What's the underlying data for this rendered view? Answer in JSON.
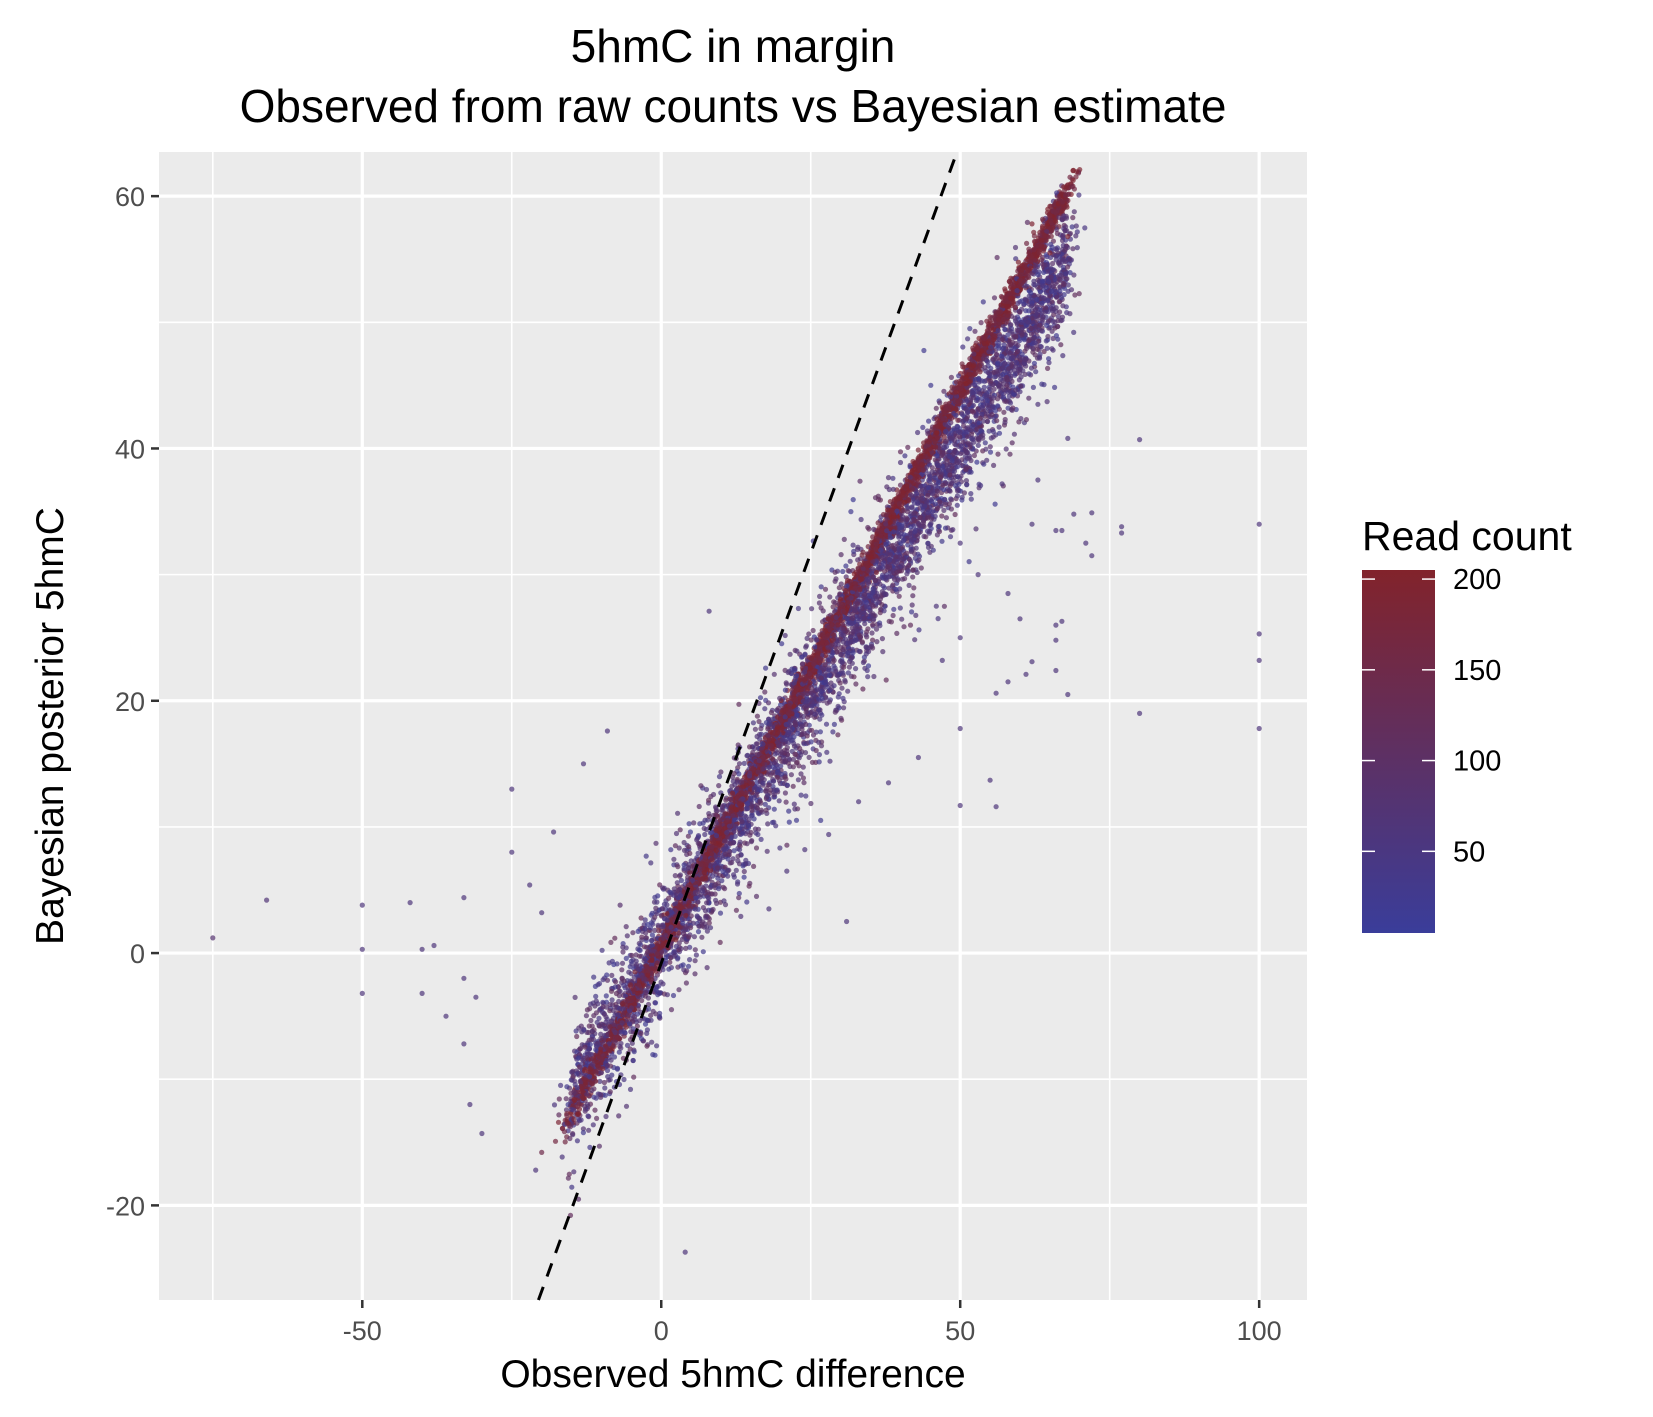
{
  "chart_data": {
    "type": "scatter",
    "title": "5hmC in margin",
    "subtitle": "Observed from raw counts vs Bayesian estimate",
    "xlabel": "Observed 5hmC difference",
    "ylabel": "Bayesian posterior 5hmC",
    "xlim": [
      -84,
      108
    ],
    "ylim": [
      -27.5,
      63.5
    ],
    "x_ticks": [
      -50,
      0,
      50,
      100
    ],
    "x_tick_labels": [
      "-50",
      "0",
      "50",
      "100"
    ],
    "y_ticks": [
      -20,
      0,
      20,
      40,
      60
    ],
    "y_tick_labels": [
      "-20",
      "0",
      "20",
      "40",
      "60"
    ],
    "grid": true,
    "reference_line": {
      "style": "dashed",
      "color": "#000000",
      "slope": 1.3,
      "intercept": -0.8
    },
    "color_scale": {
      "title": "Read count",
      "low_color": "#3a3d9a",
      "high_color": "#82232b",
      "breaks": [
        50,
        100,
        150,
        200
      ],
      "break_labels": [
        "50",
        "100",
        "150",
        "200"
      ],
      "limits": [
        5,
        205
      ]
    },
    "point_opacity": 0.7,
    "main_trend": {
      "description_free": true,
      "x_range": [
        -15,
        68
      ],
      "posterior_ratio": 0.84,
      "point_count": 9000
    },
    "outlier_points": [
      {
        "x": -75,
        "y": 1.2,
        "c": 80
      },
      {
        "x": -66,
        "y": 4.2,
        "c": 70
      },
      {
        "x": -50,
        "y": 3.8,
        "c": 60
      },
      {
        "x": -50,
        "y": 0.3,
        "c": 60
      },
      {
        "x": -50,
        "y": -3.2,
        "c": 60
      },
      {
        "x": -42,
        "y": 4,
        "c": 60
      },
      {
        "x": -40,
        "y": 0.3,
        "c": 60
      },
      {
        "x": -38,
        "y": 0.6,
        "c": 60
      },
      {
        "x": -40,
        "y": -3.2,
        "c": 60
      },
      {
        "x": -36,
        "y": -5,
        "c": 60
      },
      {
        "x": -33,
        "y": 4.4,
        "c": 60
      },
      {
        "x": -33,
        "y": -2,
        "c": 60
      },
      {
        "x": -33,
        "y": -7.2,
        "c": 60
      },
      {
        "x": -31,
        "y": -3.5,
        "c": 60
      },
      {
        "x": -32,
        "y": -12,
        "c": 60
      },
      {
        "x": -30,
        "y": -14.3,
        "c": 60
      },
      {
        "x": -25,
        "y": 13,
        "c": 60
      },
      {
        "x": -25,
        "y": 8,
        "c": 60
      },
      {
        "x": -22,
        "y": 5.4,
        "c": 60
      },
      {
        "x": -20,
        "y": 3.2,
        "c": 60
      },
      {
        "x": -18,
        "y": 9.6,
        "c": 60
      },
      {
        "x": -20,
        "y": -15.8,
        "c": 150
      },
      {
        "x": -21,
        "y": -17.2,
        "c": 60
      },
      {
        "x": -13,
        "y": 15,
        "c": 60
      },
      {
        "x": -9,
        "y": 17.6,
        "c": 60
      },
      {
        "x": 8,
        "y": 27.1,
        "c": 60
      },
      {
        "x": 4,
        "y": -23.7,
        "c": 60
      },
      {
        "x": 31,
        "y": 2.5,
        "c": 60
      },
      {
        "x": 18,
        "y": 3.5,
        "c": 60
      },
      {
        "x": 21,
        "y": 6.5,
        "c": 60
      },
      {
        "x": 24,
        "y": 8.2,
        "c": 60
      },
      {
        "x": 28,
        "y": 9.4,
        "c": 60
      },
      {
        "x": 33,
        "y": 12,
        "c": 60
      },
      {
        "x": 38,
        "y": 13.5,
        "c": 60
      },
      {
        "x": 43,
        "y": 15.5,
        "c": 60
      },
      {
        "x": 50,
        "y": 17.8,
        "c": 60
      },
      {
        "x": 50,
        "y": 11.7,
        "c": 60
      },
      {
        "x": 56,
        "y": 11.6,
        "c": 60
      },
      {
        "x": 55,
        "y": 13.7,
        "c": 60
      },
      {
        "x": 56,
        "y": 20.6,
        "c": 60
      },
      {
        "x": 58,
        "y": 21.5,
        "c": 60
      },
      {
        "x": 61,
        "y": 22.1,
        "c": 60
      },
      {
        "x": 62,
        "y": 23.1,
        "c": 60
      },
      {
        "x": 66,
        "y": 22.4,
        "c": 60
      },
      {
        "x": 68,
        "y": 20.5,
        "c": 60
      },
      {
        "x": 66,
        "y": 26,
        "c": 60
      },
      {
        "x": 67,
        "y": 26.3,
        "c": 60
      },
      {
        "x": 66,
        "y": 24.8,
        "c": 60
      },
      {
        "x": 58,
        "y": 28.5,
        "c": 60
      },
      {
        "x": 60,
        "y": 26.5,
        "c": 60
      },
      {
        "x": 62,
        "y": 34,
        "c": 60
      },
      {
        "x": 63,
        "y": 37.5,
        "c": 60
      },
      {
        "x": 66,
        "y": 33.5,
        "c": 60
      },
      {
        "x": 67,
        "y": 33.5,
        "c": 60
      },
      {
        "x": 69,
        "y": 34.8,
        "c": 60
      },
      {
        "x": 71,
        "y": 32.5,
        "c": 60
      },
      {
        "x": 72,
        "y": 34.9,
        "c": 60
      },
      {
        "x": 72,
        "y": 31.5,
        "c": 60
      },
      {
        "x": 77,
        "y": 33.8,
        "c": 60
      },
      {
        "x": 77,
        "y": 33.3,
        "c": 60
      },
      {
        "x": 68,
        "y": 40.8,
        "c": 60
      },
      {
        "x": 80,
        "y": 40.7,
        "c": 60
      },
      {
        "x": 80,
        "y": 19,
        "c": 60
      },
      {
        "x": 100,
        "y": 34,
        "c": 60
      },
      {
        "x": 100,
        "y": 25.3,
        "c": 60
      },
      {
        "x": 100,
        "y": 23.2,
        "c": 60
      },
      {
        "x": 100,
        "y": 17.8,
        "c": 60
      },
      {
        "x": 63,
        "y": 43.5,
        "c": 60
      },
      {
        "x": 63,
        "y": 50.8,
        "c": 60
      },
      {
        "x": 60,
        "y": 44.5,
        "c": 60
      },
      {
        "x": 57,
        "y": 37.2,
        "c": 60
      },
      {
        "x": 50,
        "y": 32.5,
        "c": 60
      },
      {
        "x": 53,
        "y": 30,
        "c": 60
      },
      {
        "x": 46,
        "y": 27.5,
        "c": 60
      },
      {
        "x": 50,
        "y": 25,
        "c": 60
      },
      {
        "x": 47,
        "y": 23.2,
        "c": 60
      },
      {
        "x": 65,
        "y": 55.5,
        "c": 190
      },
      {
        "x": 68,
        "y": 56.8,
        "c": 190
      },
      {
        "x": 67,
        "y": 58.8,
        "c": 190
      },
      {
        "x": 65,
        "y": 59.2,
        "c": 190
      },
      {
        "x": 62,
        "y": 57.8,
        "c": 190
      }
    ]
  }
}
